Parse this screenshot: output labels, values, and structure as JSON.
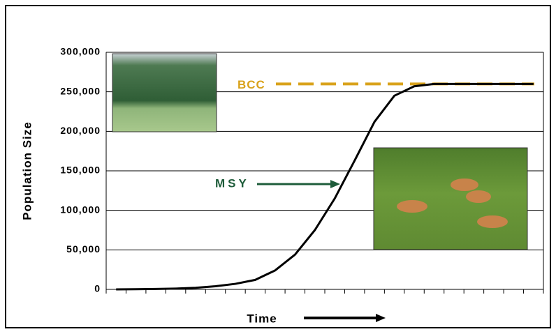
{
  "chart_data": {
    "type": "line",
    "y_label": "Population Size",
    "x_label": "Time",
    "categories": [
      null,
      null,
      null,
      null,
      null,
      null,
      null,
      null,
      null,
      null,
      null,
      null,
      null,
      null,
      null,
      null,
      null,
      null,
      null,
      null,
      null,
      null
    ],
    "values": [
      0,
      200,
      500,
      1000,
      2000,
      4000,
      7000,
      12000,
      24000,
      44000,
      75000,
      115000,
      163000,
      212000,
      245000,
      257000,
      260000,
      260000,
      260000,
      260000,
      260000,
      260000
    ],
    "color": "#000000",
    "ylim": [
      0,
      300000
    ],
    "yticks": [
      0,
      {
        "value": 50000,
        "label": "50,000"
      },
      {
        "value": 100000,
        "label": "100,000"
      },
      {
        "value": 150000,
        "label": "150,000"
      },
      {
        "value": 200000,
        "label": "200,000"
      },
      {
        "value": 250000,
        "label": "250,000"
      },
      {
        "value": 300000,
        "label": "300,000"
      }
    ],
    "grid": true,
    "bcc": {
      "label": "BCC",
      "value": 260000,
      "color": "#d9a21b"
    },
    "msy": {
      "label": "MSY",
      "color": "#1e5c3a"
    }
  }
}
